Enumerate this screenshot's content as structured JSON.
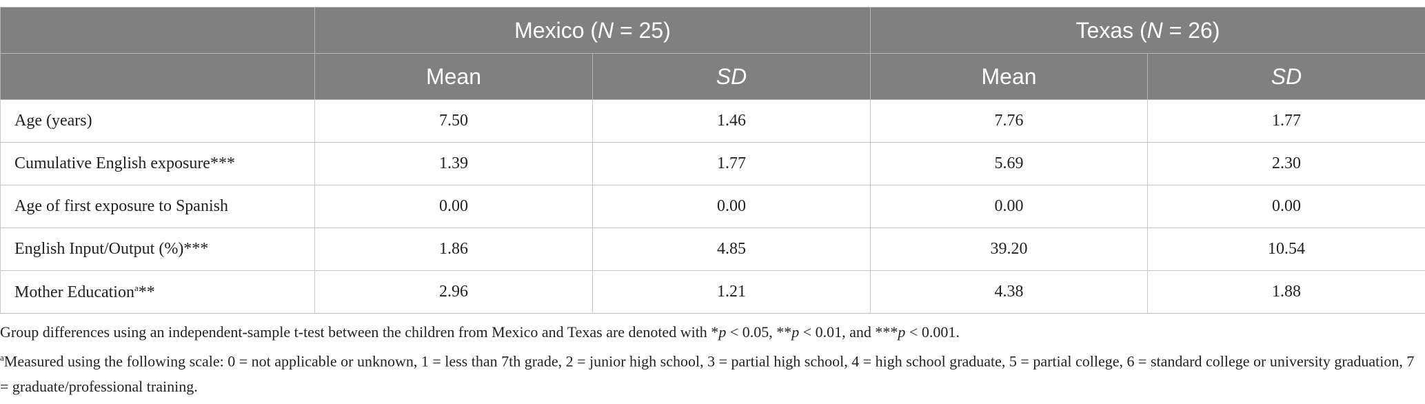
{
  "table": {
    "group_headers": [
      [
        {
          "text": "Mexico ("
        },
        {
          "text": "N",
          "style": "italic"
        },
        {
          "text": " = 25)"
        }
      ],
      [
        {
          "text": "Texas ("
        },
        {
          "text": "N",
          "style": "italic"
        },
        {
          "text": " = 26)"
        }
      ]
    ],
    "sub_headers": [
      [
        {
          "text": "Mean"
        }
      ],
      [
        {
          "text": "SD",
          "style": "italic"
        }
      ],
      [
        {
          "text": "Mean"
        }
      ],
      [
        {
          "text": "SD",
          "style": "italic"
        }
      ]
    ],
    "rows": [
      {
        "label": [
          {
            "text": "Age (years)"
          }
        ],
        "cells": [
          "7.50",
          "1.46",
          "7.76",
          "1.77"
        ]
      },
      {
        "label": [
          {
            "text": "Cumulative English exposure***"
          }
        ],
        "cells": [
          "1.39",
          "1.77",
          "5.69",
          "2.30"
        ]
      },
      {
        "label": [
          {
            "text": "Age of first exposure to Spanish"
          }
        ],
        "cells": [
          "0.00",
          "0.00",
          "0.00",
          "0.00"
        ]
      },
      {
        "label": [
          {
            "text": "English Input/Output (%)***"
          }
        ],
        "cells": [
          "1.86",
          "4.85",
          "39.20",
          "10.54"
        ]
      },
      {
        "label": [
          {
            "text": "Mother Education"
          },
          {
            "text": "a",
            "style": "sup"
          },
          {
            "text": "**"
          }
        ],
        "cells": [
          "2.96",
          "1.21",
          "4.38",
          "1.88"
        ]
      }
    ]
  },
  "notes": [
    [
      {
        "text": "Group differences using an independent-sample t-test between the children from Mexico and Texas are denoted with *"
      },
      {
        "text": "p",
        "style": "italic"
      },
      {
        "text": " < 0.05, **"
      },
      {
        "text": "p",
        "style": "italic"
      },
      {
        "text": " < 0.01, and ***"
      },
      {
        "text": "p",
        "style": "italic"
      },
      {
        "text": " < 0.001."
      }
    ],
    [
      {
        "text": "a",
        "style": "sup"
      },
      {
        "text": "Measured using the following scale: 0 = not applicable or unknown, 1 = less than 7th grade, 2 = junior high school, 3 = partial high school, 4 = high school graduate, 5 = partial college, 6 = standard college or university graduation, 7 = graduate/professional training."
      }
    ]
  ]
}
